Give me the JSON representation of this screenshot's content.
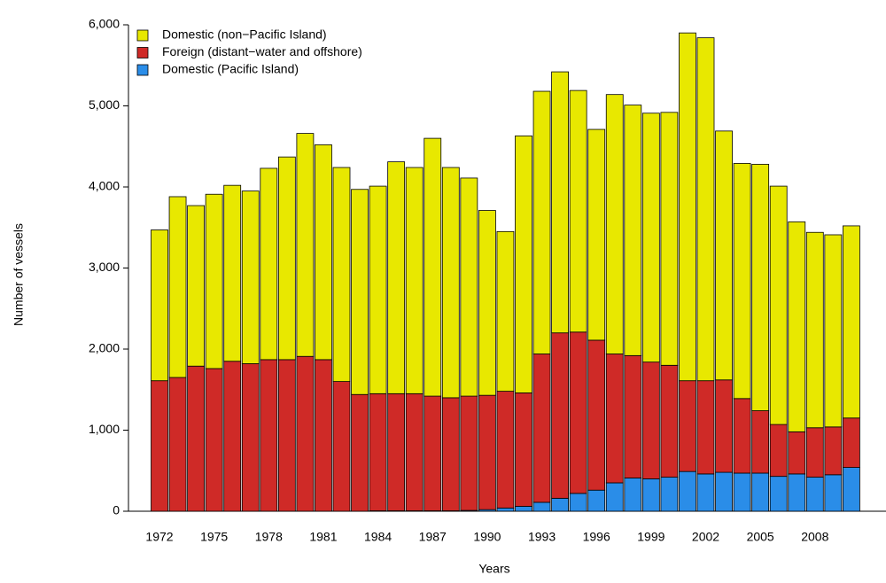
{
  "chart_data": {
    "type": "stacked_bar",
    "x_label": "Years",
    "y_label": "Number of vessels",
    "categories": [
      "1972",
      null,
      null,
      "1975",
      null,
      null,
      "1978",
      null,
      null,
      "1981",
      null,
      null,
      "1984",
      null,
      null,
      "1987",
      null,
      null,
      "1990",
      null,
      null,
      "1993",
      null,
      null,
      "1996",
      null,
      null,
      "1999",
      null,
      null,
      "2002",
      null,
      null,
      "2005",
      null,
      null,
      "2008",
      null,
      null
    ],
    "series": [
      {
        "name": "Domestic (non−Pacific Island)",
        "color": "#e8e800",
        "values": [
          1860,
          2230,
          1980,
          2150,
          2170,
          2130,
          2360,
          2500,
          2750,
          2650,
          2640,
          2530,
          2560,
          2860,
          2790,
          3180,
          2840,
          2690,
          2280,
          1970,
          3170,
          3240,
          3220,
          2980,
          2600,
          3200,
          3090,
          3070,
          3120,
          4290,
          4230,
          3070,
          2900,
          3040,
          2940,
          2590,
          2410,
          2370,
          2370
        ]
      },
      {
        "name": "Foreign (distant−water and offshore)",
        "color": "#cf2a27",
        "values": [
          1610,
          1650,
          1790,
          1760,
          1850,
          1820,
          1870,
          1870,
          1910,
          1870,
          1600,
          1440,
          1445,
          1445,
          1445,
          1415,
          1395,
          1410,
          1410,
          1440,
          1400,
          1830,
          2040,
          1990,
          1850,
          1590,
          1510,
          1440,
          1380,
          1120,
          1150,
          1140,
          920,
          770,
          640,
          520,
          610,
          590,
          610
        ]
      },
      {
        "name": "Domestic (Pacific Island)",
        "color": "#2a8de8",
        "values": [
          0,
          0,
          0,
          0,
          0,
          0,
          0,
          0,
          0,
          0,
          0,
          0,
          5,
          5,
          5,
          5,
          5,
          10,
          20,
          40,
          60,
          110,
          160,
          220,
          260,
          350,
          410,
          400,
          420,
          490,
          460,
          480,
          470,
          470,
          430,
          460,
          420,
          450,
          540
        ]
      }
    ],
    "ylim": [
      0,
      6000
    ],
    "yticks": [
      0,
      {
        "value": 1000,
        "label": "1,000"
      },
      {
        "value": 2000,
        "label": "2,000"
      },
      {
        "value": 3000,
        "label": "3,000"
      },
      {
        "value": 4000,
        "label": "4,000"
      },
      {
        "value": 5000,
        "label": "5,000"
      },
      {
        "value": 6000,
        "label": "6,000"
      }
    ],
    "grid": false,
    "legend": "top-left"
  }
}
